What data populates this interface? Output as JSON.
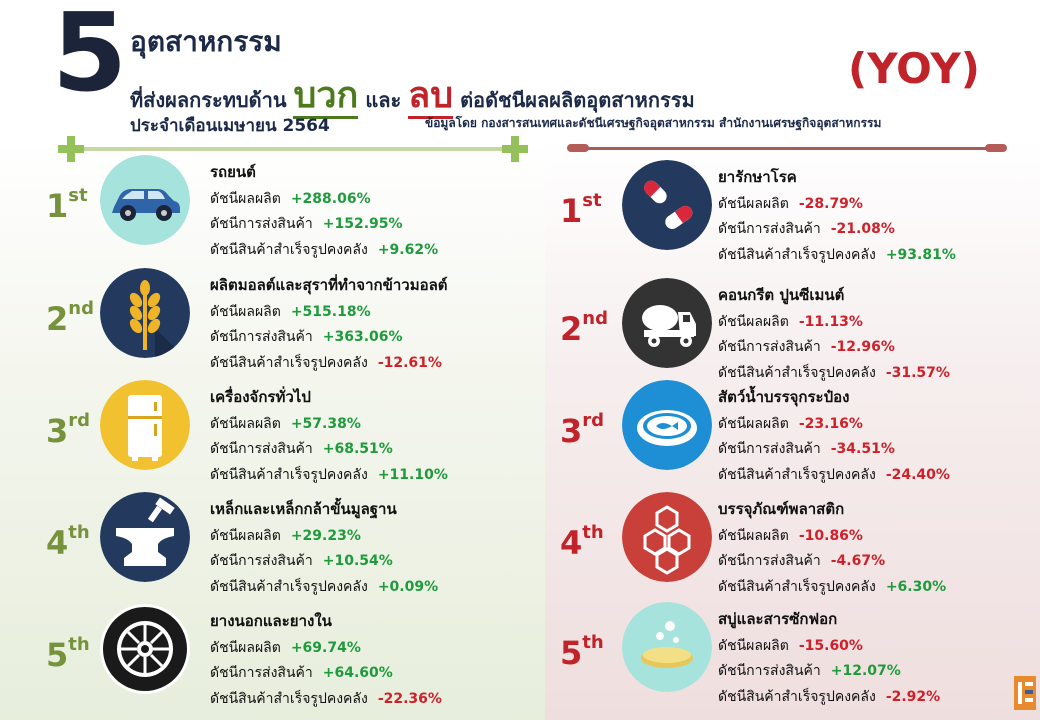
{
  "header": {
    "number": "5",
    "title_line1": "อุตสาหกรรม",
    "title_line2_a": "ที่ส่งผลกระทบด้าน",
    "positive_word": "บวก",
    "and_word": "และ",
    "negative_word": "ลบ",
    "title_line2_b": "ต่อดัชนีผลผลิตอุตสาหกรรม",
    "subtitle": "ประจำเดือนเมษายน 2564",
    "badge": "(YOY)",
    "source": "ข้อมูลโดย กองสารสนเทศและดัชนีเศรษฐกิจอุตสาหกรรม สำนักงานเศรษฐกิจอุตสาหกรรม"
  },
  "colors": {
    "positive": "#1f9a3c",
    "negative": "#d0202a",
    "rank_positive": "#76923c",
    "rank_negative": "#c0232a",
    "title": "#1c2a48"
  },
  "positive": [
    {
      "rank": "1",
      "suffix": "st",
      "name": "รถยนต์",
      "icon": "car-icon",
      "stats": [
        {
          "label": "ดัชนีผลผลิต",
          "value": "+288.06%",
          "dir": "up"
        },
        {
          "label": "ดัชนีการส่งสินค้า",
          "value": "+152.95%",
          "dir": "up"
        },
        {
          "label": "ดัชนีสินค้าสำเร็จรูปคงคลัง",
          "value": "+9.62%",
          "dir": "up"
        }
      ]
    },
    {
      "rank": "2",
      "suffix": "nd",
      "name": "ผลิตมอลต์และสุราที่ทำจากข้าวมอลต์",
      "icon": "wheat-icon",
      "stats": [
        {
          "label": "ดัชนีผลผลิต",
          "value": "+515.18%",
          "dir": "up"
        },
        {
          "label": "ดัชนีการส่งสินค้า",
          "value": "+363.06%",
          "dir": "up"
        },
        {
          "label": "ดัชนีสินค้าสำเร็จรูปคงคลัง",
          "value": "-12.61%",
          "dir": "down"
        }
      ]
    },
    {
      "rank": "3",
      "suffix": "rd",
      "name": "เครื่องจักรทั่วไป",
      "icon": "refrigerator-icon",
      "stats": [
        {
          "label": "ดัชนีผลผลิต",
          "value": "+57.38%",
          "dir": "up"
        },
        {
          "label": "ดัชนีการส่งสินค้า",
          "value": "+68.51%",
          "dir": "up"
        },
        {
          "label": "ดัชนีสินค้าสำเร็จรูปคงคลัง",
          "value": "+11.10%",
          "dir": "up"
        }
      ]
    },
    {
      "rank": "4",
      "suffix": "th",
      "name": "เหล็กและเหล็กกล้าขั้นมูลฐาน",
      "icon": "anvil-icon",
      "stats": [
        {
          "label": "ดัชนีผลผลิต",
          "value": "+29.23%",
          "dir": "up"
        },
        {
          "label": "ดัชนีการส่งสินค้า",
          "value": "+10.54%",
          "dir": "up"
        },
        {
          "label": "ดัชนีสินค้าสำเร็จรูปคงคลัง",
          "value": "+0.09%",
          "dir": "up"
        }
      ]
    },
    {
      "rank": "5",
      "suffix": "th",
      "name": "ยางนอกและยางใน",
      "icon": "tire-icon",
      "stats": [
        {
          "label": "ดัชนีผลผลิต",
          "value": "+69.74%",
          "dir": "up"
        },
        {
          "label": "ดัชนีการส่งสินค้า",
          "value": "+64.60%",
          "dir": "up"
        },
        {
          "label": "ดัชนีสินค้าสำเร็จรูปคงคลัง",
          "value": "-22.36%",
          "dir": "down"
        }
      ]
    }
  ],
  "negative": [
    {
      "rank": "1",
      "suffix": "st",
      "name": "ยารักษาโรค",
      "icon": "pills-icon",
      "stats": [
        {
          "label": "ดัชนีผลผลิต",
          "value": "-28.79%",
          "dir": "down"
        },
        {
          "label": "ดัชนีการส่งสินค้า",
          "value": "-21.08%",
          "dir": "down"
        },
        {
          "label": "ดัชนีสินค้าสำเร็จรูปคงคลัง",
          "value": "+93.81%",
          "dir": "up"
        }
      ]
    },
    {
      "rank": "2",
      "suffix": "nd",
      "name": "คอนกรีต ปูนซีเมนต์",
      "icon": "cement-truck-icon",
      "stats": [
        {
          "label": "ดัชนีผลผลิต",
          "value": "-11.13%",
          "dir": "down"
        },
        {
          "label": "ดัชนีการส่งสินค้า",
          "value": "-12.96%",
          "dir": "down"
        },
        {
          "label": "ดัชนีสินค้าสำเร็จรูปคงคลัง",
          "value": "-31.57%",
          "dir": "down"
        }
      ]
    },
    {
      "rank": "3",
      "suffix": "rd",
      "name": "สัตว์น้ำบรรจุกระป๋อง",
      "icon": "canned-fish-icon",
      "stats": [
        {
          "label": "ดัชนีผลผลิต",
          "value": "-23.16%",
          "dir": "down"
        },
        {
          "label": "ดัชนีการส่งสินค้า",
          "value": "-34.51%",
          "dir": "down"
        },
        {
          "label": "ดัชนีสินค้าสำเร็จรูปคงคลัง",
          "value": "-24.40%",
          "dir": "down"
        }
      ]
    },
    {
      "rank": "4",
      "suffix": "th",
      "name": "บรรจุภัณฑ์พลาสติก",
      "icon": "hexagon-molecule-icon",
      "stats": [
        {
          "label": "ดัชนีผลผลิต",
          "value": "-10.86%",
          "dir": "down"
        },
        {
          "label": "ดัชนีการส่งสินค้า",
          "value": "-4.67%",
          "dir": "down"
        },
        {
          "label": "ดัชนีสินค้าสำเร็จรูปคงคลัง",
          "value": "+6.30%",
          "dir": "up"
        }
      ]
    },
    {
      "rank": "5",
      "suffix": "th",
      "name": "สบู่และสารซักฟอก",
      "icon": "soap-icon",
      "stats": [
        {
          "label": "ดัชนีผลผลิต",
          "value": "-15.60%",
          "dir": "down"
        },
        {
          "label": "ดัชนีการส่งสินค้า",
          "value": "+12.07%",
          "dir": "up"
        },
        {
          "label": "ดัชนีสินค้าสำเร็จรูปคงคลัง",
          "value": "-2.92%",
          "dir": "down"
        }
      ]
    }
  ]
}
